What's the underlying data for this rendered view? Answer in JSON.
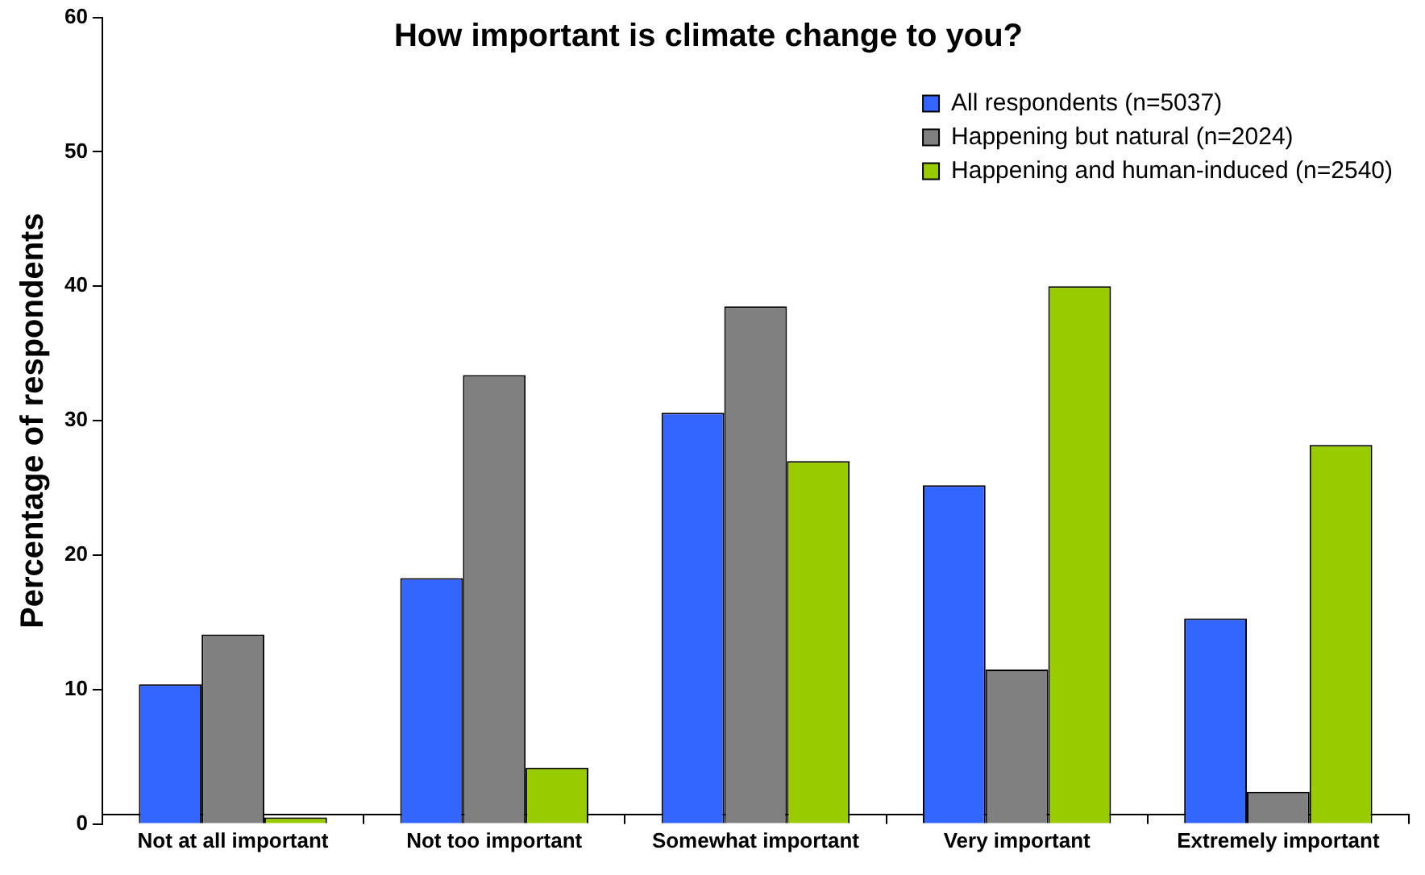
{
  "chart_data": {
    "type": "bar",
    "title": "How important is climate change to you?",
    "ylabel": "Percentage of respondents",
    "categories": [
      "Not at all important",
      "Not too important",
      "Somewhat important",
      "Very important",
      "Extremely important"
    ],
    "series": [
      {
        "name": "All respondents (n=5037)",
        "color": "#3366ff",
        "values": [
          10.4,
          18.3,
          30.6,
          25.2,
          15.3
        ]
      },
      {
        "name": "Happening but natural (n=2024)",
        "color": "#808080",
        "values": [
          14.1,
          33.4,
          38.5,
          11.5,
          2.4
        ]
      },
      {
        "name": "Happening and human-induced (n=2540)",
        "color": "#99cc00",
        "values": [
          0.5,
          4.2,
          27.0,
          40.0,
          28.2
        ]
      }
    ],
    "ylim": [
      0,
      60
    ],
    "yticks": [
      0,
      10,
      20,
      30,
      40,
      50,
      60
    ],
    "grid": false,
    "legend": "top right"
  }
}
